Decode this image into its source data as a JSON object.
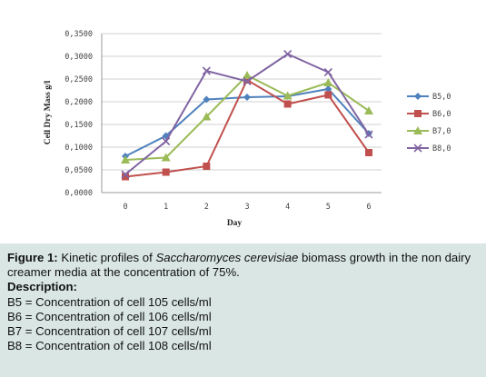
{
  "chart_data": {
    "type": "line",
    "x": [
      0,
      1,
      2,
      3,
      4,
      5,
      6
    ],
    "xlabel": "Day",
    "ylabel": "Cell Dry Mass g/l",
    "ylim": [
      0,
      0.35
    ],
    "yticks": [
      "0,0000",
      "0,0500",
      "0,1000",
      "0,1500",
      "0,2000",
      "0,2500",
      "0,3000",
      "0,3500"
    ],
    "xticks": [
      "0",
      "1",
      "2",
      "3",
      "4",
      "5",
      "6"
    ],
    "grid": true,
    "legend_position": "right",
    "series": [
      {
        "name": "B5,0",
        "color": "#4f81bd",
        "marker": "diamond",
        "values": [
          0.08,
          0.125,
          0.205,
          0.21,
          0.212,
          0.228,
          0.13
        ]
      },
      {
        "name": "B6,0",
        "color": "#c0504d",
        "marker": "square",
        "values": [
          0.035,
          0.045,
          0.058,
          0.248,
          0.195,
          0.215,
          0.088
        ]
      },
      {
        "name": "B7,0",
        "color": "#9bbb59",
        "marker": "triangle",
        "values": [
          0.072,
          0.077,
          0.167,
          0.258,
          0.213,
          0.242,
          0.18
        ]
      },
      {
        "name": "B8,0",
        "color": "#8064a2",
        "marker": "x",
        "values": [
          0.04,
          0.113,
          0.268,
          0.245,
          0.305,
          0.265,
          0.128
        ]
      }
    ]
  },
  "caption": {
    "figure_label": "Figure 1:",
    "text_before": " Kinetic profiles of ",
    "species": "Saccharomyces cerevisiae",
    "text_after": " biomass growth in the non dairy creamer media at the concentration of 75%.",
    "description_label": "Description:",
    "lines": [
      "B5 = Concentration of cell 105 cells/ml",
      "B6 = Concentration of cell 106 cells/ml",
      "B7 = Concentration of cell 107 cells/ml",
      "B8 = Concentration of cell 108 cells/ml"
    ]
  }
}
